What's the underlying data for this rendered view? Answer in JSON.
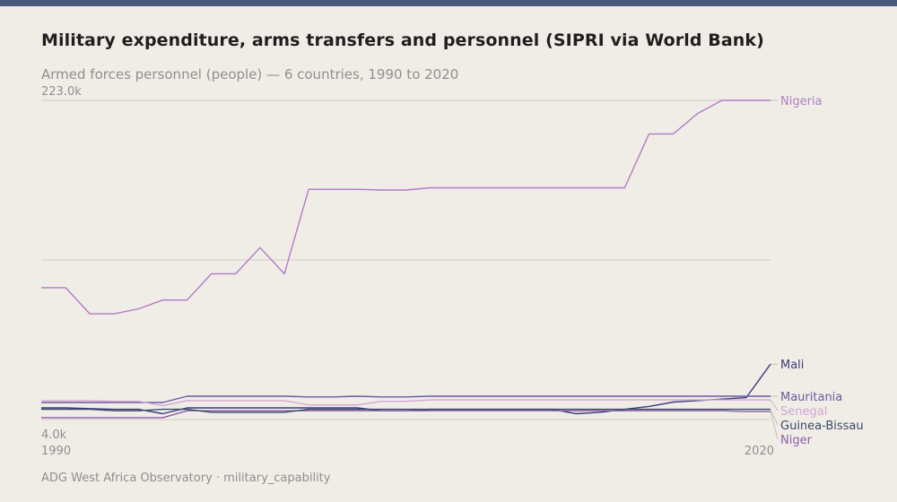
{
  "header": {
    "title": "Military expenditure, arms transfers and personnel (SIPRI via World Bank)",
    "subtitle": "Armed forces personnel (people) — 6 countries, 1990 to 2020"
  },
  "footer": {
    "source": "ADG West Africa Observatory · military_capability"
  },
  "colors": {
    "background": "#f0ede7",
    "top_bar": "#4a5a7a",
    "grid": "#cfcac2",
    "tick_text": "#8f8f8f"
  },
  "chart_data": {
    "type": "line",
    "title": "Armed forces personnel (people) — 6 countries, 1990 to 2020",
    "xlabel": "",
    "ylabel": "",
    "xlim": [
      1990,
      2020
    ],
    "ylim": [
      4000,
      223000
    ],
    "y_ticks_labeled": [
      "223.0k",
      "4.0k"
    ],
    "x_ticks_labeled": [
      "1990",
      "2020"
    ],
    "gridlines": [
      223000,
      113500
    ],
    "legend": "direct labels at right end of lines",
    "x": [
      1990,
      1991,
      1992,
      1993,
      1994,
      1995,
      1996,
      1997,
      1998,
      1999,
      2000,
      2001,
      2002,
      2003,
      2004,
      2005,
      2006,
      2007,
      2008,
      2009,
      2010,
      2011,
      2012,
      2013,
      2014,
      2015,
      2016,
      2017,
      2018,
      2019,
      2020
    ],
    "series": [
      {
        "name": "Nigeria",
        "color": "#b07cc6",
        "values": [
          94500,
          94500,
          76500,
          76500,
          80000,
          86000,
          86000,
          104000,
          104000,
          122000,
          104000,
          162000,
          162000,
          162000,
          161500,
          161500,
          163000,
          163000,
          163000,
          163000,
          163000,
          163000,
          163000,
          163000,
          163000,
          200000,
          200000,
          214000,
          223000,
          223000,
          223000
        ]
      },
      {
        "name": "Mali",
        "color": "#3b3b7a",
        "values": [
          12000,
          12000,
          11500,
          11000,
          11000,
          8000,
          12000,
          12000,
          12000,
          12000,
          12000,
          12000,
          12000,
          12000,
          10000,
          10000,
          11000,
          11000,
          11000,
          11000,
          11000,
          11000,
          8000,
          9000,
          11000,
          13000,
          16000,
          17000,
          18000,
          19000,
          42000
        ]
      },
      {
        "name": "Mauritania",
        "color": "#6a5a9e",
        "values": [
          15700,
          15700,
          15700,
          15700,
          15700,
          15700,
          20000,
          20000,
          20000,
          20000,
          20000,
          19500,
          19500,
          20000,
          19500,
          19500,
          20000,
          20000,
          20000,
          20000,
          20000,
          20000,
          20000,
          20000,
          20000,
          20000,
          20000,
          20000,
          20000,
          20000,
          20000
        ]
      },
      {
        "name": "Senegal",
        "color": "#d4a6d4",
        "values": [
          17000,
          17000,
          17000,
          16500,
          16500,
          13500,
          17000,
          17000,
          17000,
          17000,
          17000,
          14000,
          14000,
          14000,
          16500,
          16500,
          17500,
          17500,
          17500,
          17500,
          17500,
          17500,
          17500,
          17500,
          17500,
          17500,
          17500,
          17500,
          17500,
          17500,
          17500
        ]
      },
      {
        "name": "Niger",
        "color": "#8e5ea8",
        "values": [
          5300,
          5300,
          5300,
          5300,
          5300,
          5300,
          10000,
          10000,
          10000,
          10000,
          10000,
          10000,
          10000,
          10000,
          10000,
          10000,
          10000,
          10000,
          10000,
          10000,
          10000,
          10000,
          10000,
          10000,
          10000,
          10000,
          10000,
          10000,
          10000,
          9500,
          9500
        ]
      },
      {
        "name": "Guinea-Bissau",
        "color": "#3a4a68",
        "values": [
          11000,
          11000,
          11000,
          10000,
          10000,
          11000,
          11000,
          9000,
          9000,
          9000,
          9000,
          11000,
          11000,
          11000,
          11000,
          11000,
          11000,
          11000,
          11000,
          11000,
          11000,
          11000,
          11000,
          11000,
          11000,
          11000,
          11000,
          11000,
          11000,
          11000,
          11000
        ]
      }
    ]
  }
}
